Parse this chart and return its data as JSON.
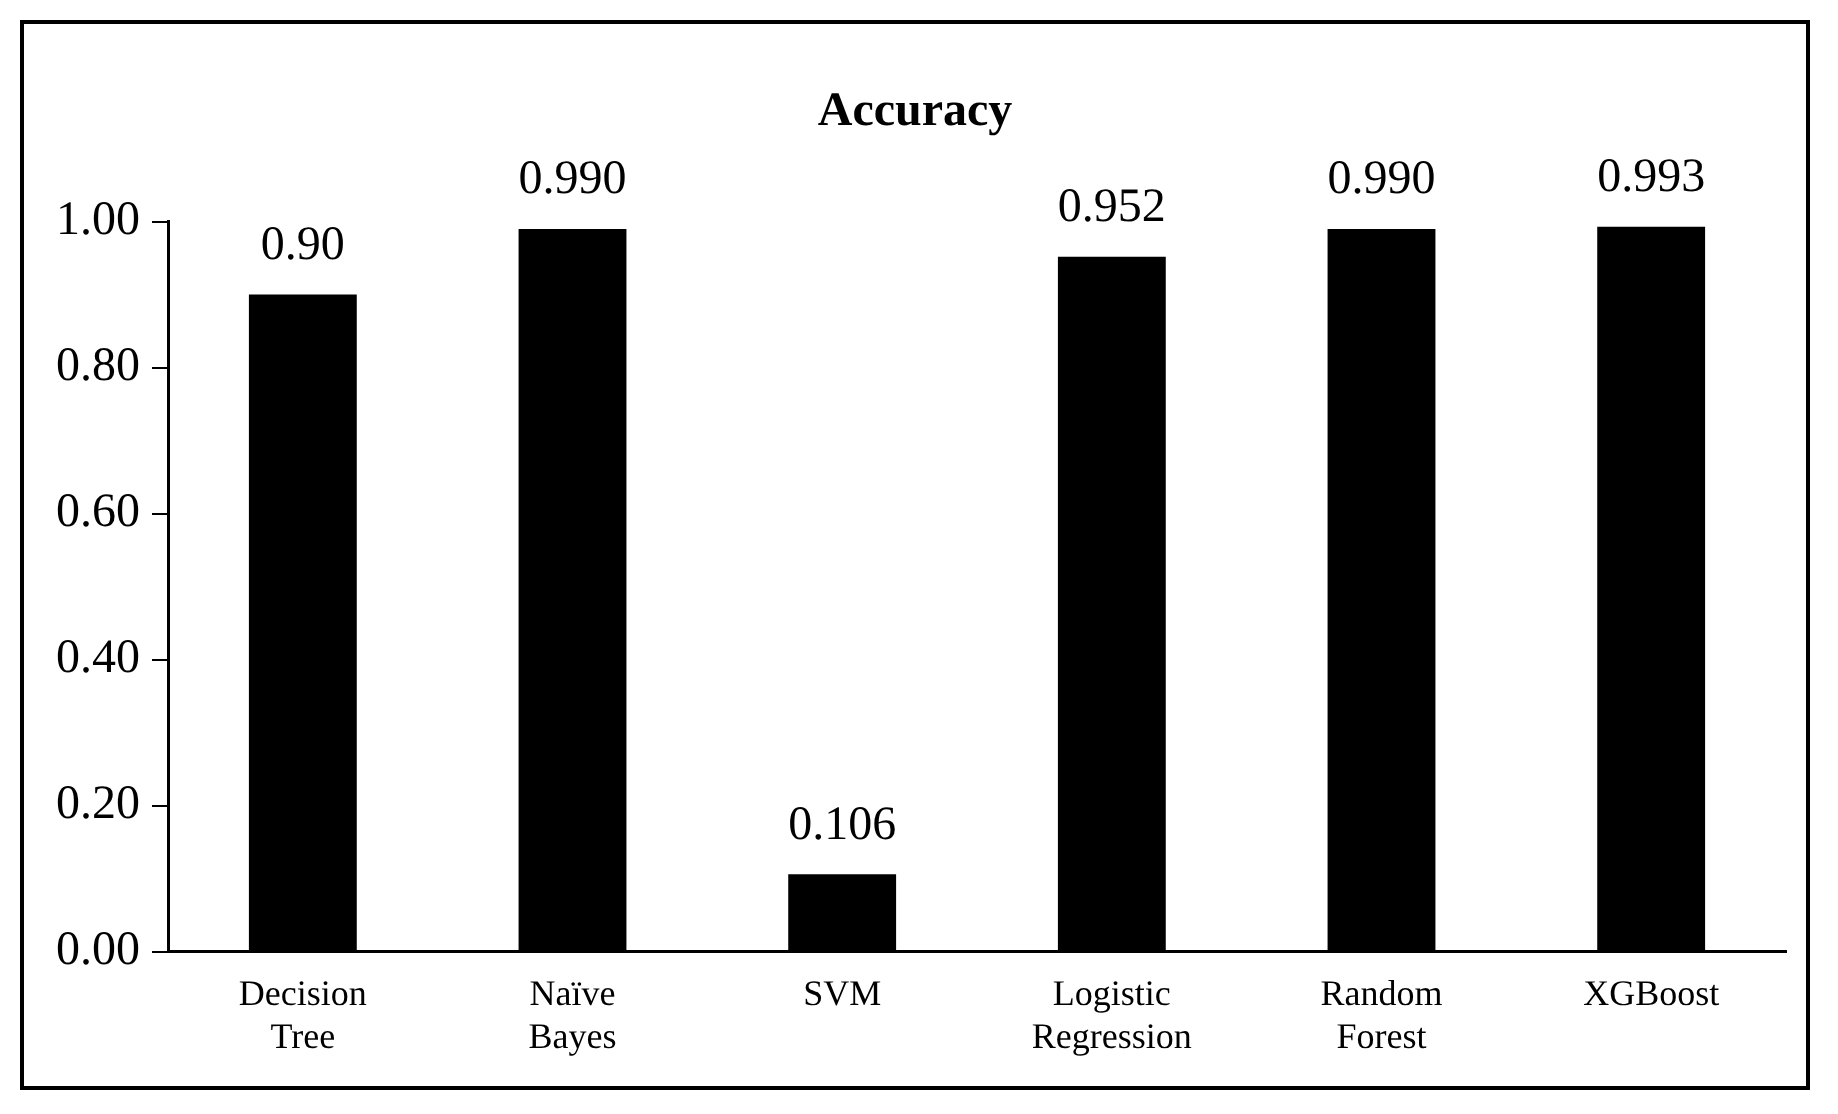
{
  "chart_data": {
    "type": "bar",
    "title": "Accuracy",
    "categories": [
      "Decision Tree",
      "Naïve Bayes",
      "SVM",
      "Logistic Regression",
      "Random Forest",
      "XGBoost"
    ],
    "values": [
      0.9,
      0.99,
      0.106,
      0.952,
      0.99,
      0.993
    ],
    "value_labels": [
      "0.90",
      "0.990",
      "0.106",
      "0.952",
      "0.990",
      "0.993"
    ],
    "color": "#000000",
    "ylim": [
      0,
      1
    ],
    "yticks": [
      {
        "value": 0,
        "label": "0.00"
      },
      {
        "value": 0.2,
        "label": "0.20"
      },
      {
        "value": 0.4,
        "label": "0.40"
      },
      {
        "value": 0.6,
        "label": "0.60"
      },
      {
        "value": 0.8,
        "label": "0.80"
      },
      {
        "value": 1,
        "label": "1.00"
      }
    ],
    "grid": false,
    "legend": false
  }
}
